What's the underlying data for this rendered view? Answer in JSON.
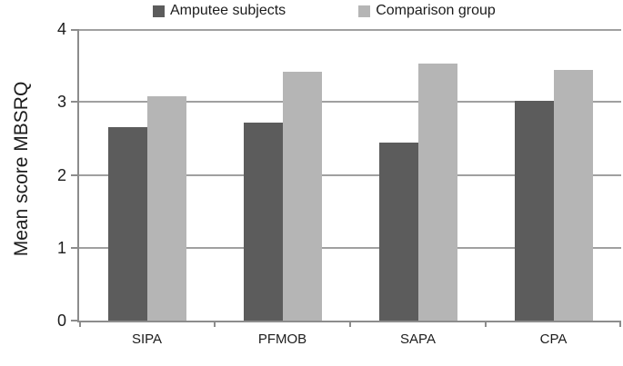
{
  "chart_data": {
    "type": "bar",
    "title": "",
    "xlabel": "",
    "ylabel": "Mean score MBSRQ",
    "categories": [
      "SIPA",
      "PFMOB",
      "SAPA",
      "CPA"
    ],
    "series": [
      {
        "name": "Amputee subjects",
        "color": "#5c5c5c",
        "values": [
          2.65,
          2.72,
          2.44,
          3.01
        ]
      },
      {
        "name": "Comparison group",
        "color": "#b5b5b5",
        "values": [
          3.08,
          3.41,
          3.53,
          3.44
        ]
      }
    ],
    "ylim": [
      0,
      4
    ],
    "yticks": [
      0,
      1,
      2,
      3,
      4
    ],
    "grid": "horizontal",
    "legend_position": "top"
  },
  "colors": {
    "background": "#ffffff",
    "gridline": "#a0a0a0",
    "axis": "#8c8c8c",
    "text": "#1c1c1c"
  }
}
